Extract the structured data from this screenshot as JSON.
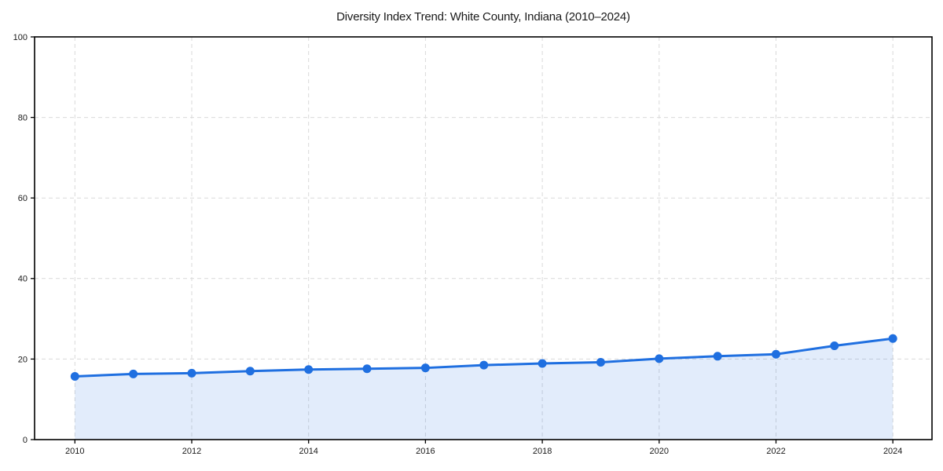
{
  "chart_data": {
    "type": "line",
    "title": "Diversity Index Trend: White County, Indiana (2010–2024)",
    "x": [
      2010,
      2011,
      2012,
      2013,
      2014,
      2015,
      2016,
      2017,
      2018,
      2019,
      2020,
      2021,
      2022,
      2023,
      2024
    ],
    "series": [
      {
        "name": "Diversity Index",
        "values": [
          15.7,
          16.3,
          16.5,
          17.0,
          17.4,
          17.6,
          17.8,
          18.5,
          18.9,
          19.2,
          20.1,
          20.7,
          21.2,
          23.3,
          25.1
        ]
      }
    ],
    "xlabel": "",
    "ylabel": "",
    "xlim": [
      2009.31,
      2024.67
    ],
    "ylim": [
      0,
      100
    ],
    "xticks": [
      2010,
      2012,
      2014,
      2016,
      2018,
      2020,
      2022,
      2024
    ],
    "yticks": [
      0,
      20,
      40,
      60,
      80,
      100
    ],
    "grid": true,
    "grid_style": "dashed",
    "legend_position": "none",
    "marker": "circle",
    "area_fill": true
  },
  "colors": {
    "line": "#1f6fe0",
    "marker": "#1f6fe0",
    "area_fill": "#1f6fe0",
    "area_fill_opacity": "0.13",
    "grid": "#d9d9d9",
    "spine": "#000000",
    "tick_text": "#1a1a1a",
    "background": "#ffffff"
  }
}
